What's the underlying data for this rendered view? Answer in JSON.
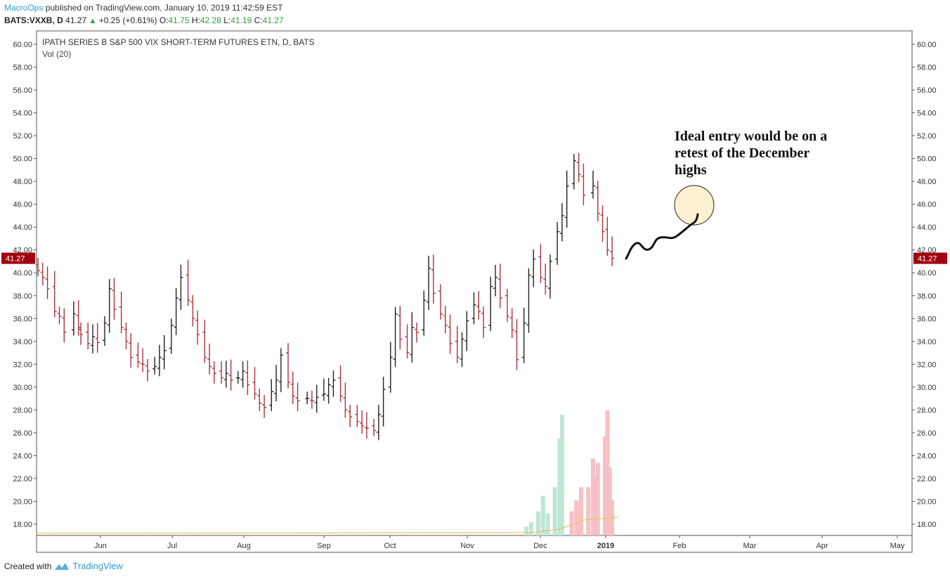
{
  "header": {
    "author": "MacroOps",
    "published": "published on TradingView.com, January 10, 2019 11:42:59 EST",
    "symbol": "BATS:VXXB, D",
    "last": "41.27",
    "change": "+0.25 (+0.61%)",
    "o_label": "O:",
    "o_value": "41.75",
    "h_label": "H:",
    "h_value": "42.28",
    "l_label": "L:",
    "l_value": "41.19",
    "c_label": "C:",
    "c_value": "41.27"
  },
  "footer": {
    "created_with": "Created with",
    "brand": "TradingView"
  },
  "annotation": "Ideal entry would be on a retest of the December highs",
  "colors": {
    "up": "#222222",
    "down": "#a8323c",
    "price_tag": "#a3000f",
    "vol_up": "#bfe6d2",
    "vol_down": "#f7c1c3",
    "vol_ma": "#e8c36a",
    "circle_fill": "#fdf0d2"
  },
  "chart_data": {
    "type": "ohlc",
    "title": "IPATH SERIES B S&P 500 VIX SHORT-TERM FUTURES ETN, D, BATS",
    "indicator": "Vol (20)",
    "ylim": [
      17,
      61
    ],
    "y_ticks": [
      "60.00",
      "58.00",
      "56.00",
      "54.00",
      "52.00",
      "50.00",
      "48.00",
      "46.00",
      "44.00",
      "42.00",
      "40.00",
      "38.00",
      "36.00",
      "34.00",
      "32.00",
      "30.00",
      "28.00",
      "26.00",
      "24.00",
      "22.00",
      "20.00",
      "18.00"
    ],
    "x_ticks": [
      "Jun",
      "Jul",
      "Aug",
      "Sep",
      "Oct",
      "Nov",
      "Dec",
      "2019",
      "Feb",
      "Mar",
      "Apr",
      "May"
    ],
    "x_range": [
      "2018-05-14",
      "2019-05-10"
    ],
    "last_price": "41.27",
    "grid": false,
    "series": [
      {
        "date": "2018-05-14",
        "close": 40.2
      },
      {
        "date": "2018-05-16",
        "close": 39.6
      },
      {
        "date": "2018-05-18",
        "close": 38.6
      },
      {
        "date": "2018-05-21",
        "close": 36.6
      },
      {
        "date": "2018-05-23",
        "close": 36.2
      },
      {
        "date": "2018-05-25",
        "close": 34.8
      },
      {
        "date": "2018-05-29",
        "close": 36.4
      },
      {
        "date": "2018-05-31",
        "close": 35.2
      },
      {
        "date": "2018-06-01",
        "close": 34.6
      },
      {
        "date": "2018-06-04",
        "close": 33.8
      },
      {
        "date": "2018-06-06",
        "close": 34.4
      },
      {
        "date": "2018-06-08",
        "close": 33.9
      },
      {
        "date": "2018-06-11",
        "close": 35.6
      },
      {
        "date": "2018-06-13",
        "close": 38.6
      },
      {
        "date": "2018-06-15",
        "close": 36.8
      },
      {
        "date": "2018-06-18",
        "close": 35.2
      },
      {
        "date": "2018-06-20",
        "close": 34.0
      },
      {
        "date": "2018-06-22",
        "close": 32.6
      },
      {
        "date": "2018-06-25",
        "close": 32.2
      },
      {
        "date": "2018-06-27",
        "close": 32.0
      },
      {
        "date": "2018-06-29",
        "close": 31.4
      },
      {
        "date": "2018-07-02",
        "close": 31.8
      },
      {
        "date": "2018-07-04",
        "close": 32.6
      },
      {
        "date": "2018-07-06",
        "close": 33.2
      },
      {
        "date": "2018-07-09",
        "close": 35.4
      },
      {
        "date": "2018-07-11",
        "close": 37.8
      },
      {
        "date": "2018-07-13",
        "close": 39.6
      },
      {
        "date": "2018-07-16",
        "close": 37.6
      },
      {
        "date": "2018-07-18",
        "close": 36.0
      },
      {
        "date": "2018-07-20",
        "close": 34.6
      },
      {
        "date": "2018-07-23",
        "close": 32.6
      },
      {
        "date": "2018-07-25",
        "close": 31.8
      },
      {
        "date": "2018-07-27",
        "close": 31.2
      },
      {
        "date": "2018-07-30",
        "close": 30.8
      },
      {
        "date": "2018-08-01",
        "close": 31.2
      },
      {
        "date": "2018-08-03",
        "close": 30.6
      },
      {
        "date": "2018-08-06",
        "close": 30.8
      },
      {
        "date": "2018-08-08",
        "close": 31.4
      },
      {
        "date": "2018-08-10",
        "close": 30.2
      },
      {
        "date": "2018-08-13",
        "close": 29.4
      },
      {
        "date": "2018-08-15",
        "close": 28.6
      },
      {
        "date": "2018-08-17",
        "close": 28.2
      },
      {
        "date": "2018-08-20",
        "close": 29.6
      },
      {
        "date": "2018-08-22",
        "close": 30.6
      },
      {
        "date": "2018-08-24",
        "close": 32.8
      },
      {
        "date": "2018-08-27",
        "close": 30.4
      },
      {
        "date": "2018-08-29",
        "close": 29.2
      },
      {
        "date": "2018-08-31",
        "close": 28.8
      },
      {
        "date": "2018-09-04",
        "close": 29.0
      },
      {
        "date": "2018-09-06",
        "close": 28.8
      },
      {
        "date": "2018-09-08",
        "close": 29.1
      },
      {
        "date": "2018-09-11",
        "close": 29.4
      },
      {
        "date": "2018-09-13",
        "close": 30.2
      },
      {
        "date": "2018-09-15",
        "close": 30.6
      },
      {
        "date": "2018-09-18",
        "close": 29.2
      },
      {
        "date": "2018-09-20",
        "close": 28.0
      },
      {
        "date": "2018-09-22",
        "close": 27.4
      },
      {
        "date": "2018-09-25",
        "close": 27.0
      },
      {
        "date": "2018-09-27",
        "close": 26.6
      },
      {
        "date": "2018-09-29",
        "close": 26.4
      },
      {
        "date": "2018-10-02",
        "close": 26.2
      },
      {
        "date": "2018-10-04",
        "close": 27.6
      },
      {
        "date": "2018-10-06",
        "close": 29.8
      },
      {
        "date": "2018-10-09",
        "close": 32.6
      },
      {
        "date": "2018-10-11",
        "close": 36.4
      },
      {
        "date": "2018-10-13",
        "close": 34.2
      },
      {
        "date": "2018-10-16",
        "close": 33.0
      },
      {
        "date": "2018-10-18",
        "close": 35.2
      },
      {
        "date": "2018-10-20",
        "close": 34.8
      },
      {
        "date": "2018-10-23",
        "close": 37.6
      },
      {
        "date": "2018-10-25",
        "close": 40.4
      },
      {
        "date": "2018-10-27",
        "close": 38.2
      },
      {
        "date": "2018-10-30",
        "close": 36.4
      },
      {
        "date": "2018-11-01",
        "close": 35.4
      },
      {
        "date": "2018-11-03",
        "close": 33.8
      },
      {
        "date": "2018-11-06",
        "close": 32.6
      },
      {
        "date": "2018-11-08",
        "close": 34.2
      },
      {
        "date": "2018-11-10",
        "close": 35.8
      },
      {
        "date": "2018-11-13",
        "close": 37.2
      },
      {
        "date": "2018-11-15",
        "close": 36.6
      },
      {
        "date": "2018-11-17",
        "close": 35.2
      },
      {
        "date": "2018-11-20",
        "close": 38.8
      },
      {
        "date": "2018-11-22",
        "close": 39.6
      },
      {
        "date": "2018-11-24",
        "close": 37.8
      },
      {
        "date": "2018-11-27",
        "close": 36.2
      },
      {
        "date": "2018-11-29",
        "close": 35.0
      },
      {
        "date": "2018-12-01",
        "close": 32.4
      },
      {
        "date": "2018-12-04",
        "close": 35.6
      },
      {
        "date": "2018-12-06",
        "close": 39.8
      },
      {
        "date": "2018-12-08",
        "close": 41.2
      },
      {
        "date": "2018-12-11",
        "close": 39.6
      },
      {
        "date": "2018-12-13",
        "close": 38.8
      },
      {
        "date": "2018-12-15",
        "close": 41.0
      },
      {
        "date": "2018-12-18",
        "close": 43.6
      },
      {
        "date": "2018-12-20",
        "close": 45.0
      },
      {
        "date": "2018-12-22",
        "close": 47.6
      },
      {
        "date": "2018-12-25",
        "close": 49.8
      },
      {
        "date": "2018-12-27",
        "close": 48.6
      },
      {
        "date": "2018-12-29",
        "close": 46.8
      },
      {
        "date": "2019-01-02",
        "close": 47.6
      },
      {
        "date": "2019-01-04",
        "close": 45.2
      },
      {
        "date": "2019-01-06",
        "close": 43.6
      },
      {
        "date": "2019-01-08",
        "close": 42.0
      },
      {
        "date": "2019-01-10",
        "close": 41.27
      }
    ],
    "volume": {
      "range": [
        0,
        30
      ],
      "bars": [
        {
          "date": "2018-12-05",
          "v": 0.8,
          "dir": "up"
        },
        {
          "date": "2018-12-07",
          "v": 1.2,
          "dir": "up"
        },
        {
          "date": "2018-12-10",
          "v": 2.2,
          "dir": "up"
        },
        {
          "date": "2018-12-12",
          "v": 3.6,
          "dir": "up"
        },
        {
          "date": "2018-12-14",
          "v": 2.0,
          "dir": "up"
        },
        {
          "date": "2018-12-17",
          "v": 4.4,
          "dir": "up"
        },
        {
          "date": "2018-12-19",
          "v": 8.8,
          "dir": "up"
        },
        {
          "date": "2018-12-20",
          "v": 11.0,
          "dir": "up"
        },
        {
          "date": "2018-12-24",
          "v": 2.2,
          "dir": "down"
        },
        {
          "date": "2018-12-26",
          "v": 3.2,
          "dir": "down"
        },
        {
          "date": "2018-12-27",
          "v": 3.0,
          "dir": "down"
        },
        {
          "date": "2018-12-28",
          "v": 4.4,
          "dir": "down"
        },
        {
          "date": "2018-12-31",
          "v": 4.4,
          "dir": "down"
        },
        {
          "date": "2019-01-02",
          "v": 7.0,
          "dir": "down"
        },
        {
          "date": "2019-01-03",
          "v": 5.4,
          "dir": "down"
        },
        {
          "date": "2019-01-04",
          "v": 6.6,
          "dir": "down"
        },
        {
          "date": "2019-01-07",
          "v": 9.0,
          "dir": "down"
        },
        {
          "date": "2019-01-08",
          "v": 11.4,
          "dir": "down"
        },
        {
          "date": "2019-01-09",
          "v": 6.2,
          "dir": "down"
        },
        {
          "date": "2019-01-10",
          "v": 3.2,
          "dir": "down"
        }
      ]
    }
  }
}
